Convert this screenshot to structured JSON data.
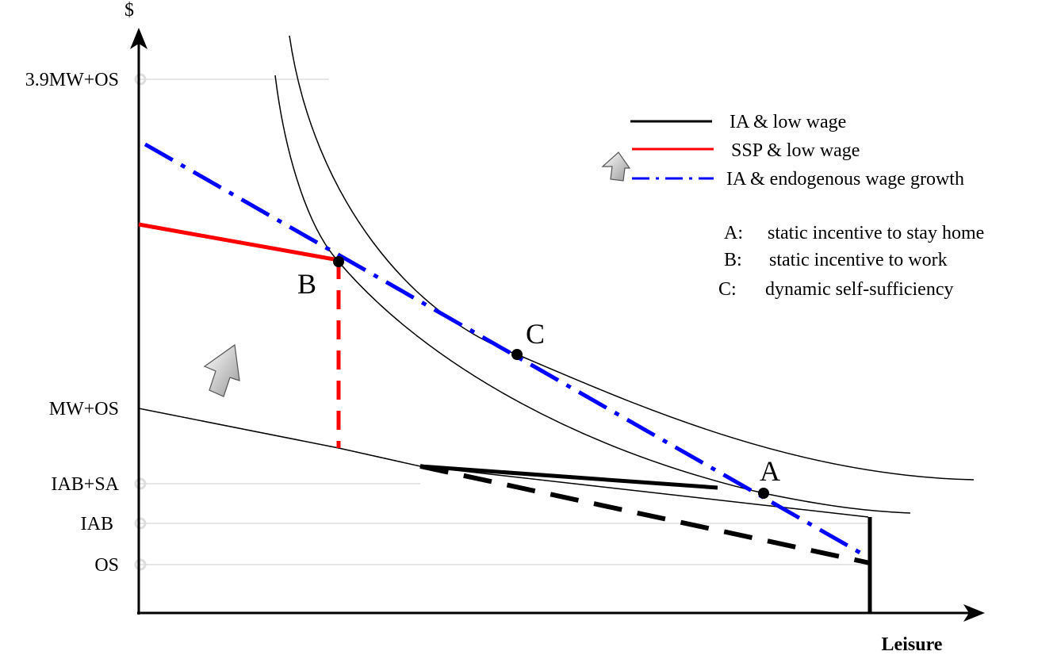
{
  "axes": {
    "y_label": "$",
    "x_label": "Leisure",
    "y_ticks": [
      "3.9MW+OS",
      "MW+OS",
      "IAB+SA",
      "IAB",
      "OS"
    ]
  },
  "points": [
    "B",
    "C",
    "A"
  ],
  "legend": [
    "IA & low wage",
    "SSP & low wage",
    "IA & endogenous wage growth"
  ],
  "notes": [
    {
      "key": "A:",
      "text": "static incentive to stay home"
    },
    {
      "key": "B:",
      "text": "static incentive to work"
    },
    {
      "key": "C:",
      "text": "dynamic self-sufficiency"
    }
  ]
}
